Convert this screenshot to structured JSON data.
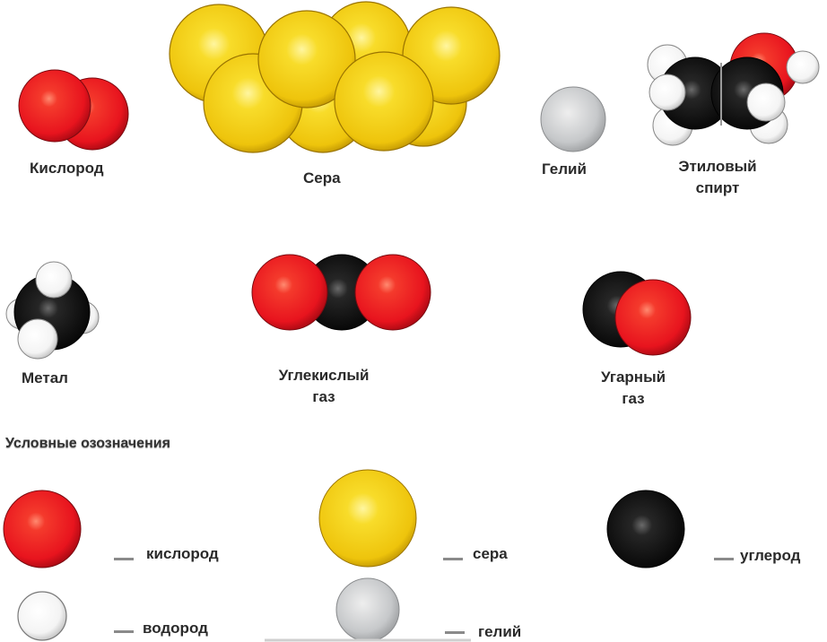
{
  "labels": {
    "oxygen": "Кислород",
    "sulfur": "Сера",
    "helium": "Гелий",
    "ethanol_1": "Этиловый",
    "ethanol_2": "спирт",
    "methane": "Метал",
    "co2_1": "Углекислый",
    "co2_2": "газ",
    "co_1": "Угарный",
    "co_2": "газ"
  },
  "legend": {
    "title": "Условные озозначения",
    "items": [
      {
        "label": "кислород",
        "atom": "oxygen"
      },
      {
        "label": "сера",
        "atom": "sulfur"
      },
      {
        "label": "углерод",
        "atom": "carbon"
      },
      {
        "label": "водород",
        "atom": "hydrogen"
      },
      {
        "label": "гелий",
        "atom": "helium"
      }
    ]
  },
  "colors": {
    "oxygen": "#e8141e",
    "sulfur": "#f0c810",
    "carbon": "#111111",
    "hydrogen": "#ffffff",
    "helium": "#c4c6c8"
  }
}
